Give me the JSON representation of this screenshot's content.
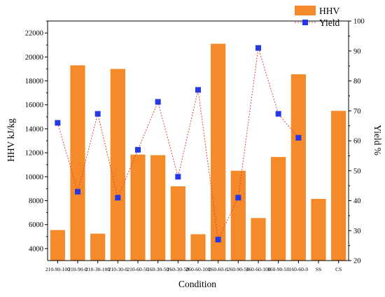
{
  "chart_data": {
    "type": "bar",
    "categories": [
      "210-90-100",
      "210-90-0",
      "210-30-100",
      "210-30-0",
      "210-60-50",
      "160-30-50",
      "260-30-50",
      "260-60-100",
      "260-60-0",
      "260-90-50",
      "160-60-100",
      "160-90-50",
      "160-60-0",
      "SS",
      "CS"
    ],
    "series": [
      {
        "name": "HHV",
        "type": "bar",
        "axis": "left",
        "color": "#F58A2A",
        "values": [
          5550,
          19300,
          5250,
          19000,
          11850,
          11800,
          9200,
          5200,
          21100,
          10500,
          6550,
          11650,
          18550,
          8150,
          15500
        ]
      },
      {
        "name": "Yield",
        "type": "line",
        "axis": "right",
        "color": "#2438E8",
        "line_color": "#E8443A",
        "values": [
          66,
          43,
          69,
          41,
          57,
          73,
          48,
          77,
          27,
          41,
          91,
          69,
          61,
          null,
          null
        ]
      }
    ],
    "xlabel": "Condition",
    "ylabel": "HHV kJ/kg",
    "y2label": "Yield %",
    "ylim": [
      3000,
      23000
    ],
    "y2lim": [
      20,
      100
    ],
    "yticks": [
      "4000",
      "6000",
      "8000",
      "10000",
      "12000",
      "14000",
      "16000",
      "18000",
      "20000",
      "22000"
    ],
    "y2ticks": [
      "20",
      "30",
      "40",
      "50",
      "60",
      "70",
      "80",
      "90",
      "100"
    ],
    "legend": {
      "position": "top-right",
      "items": [
        "HHV",
        "Yield"
      ]
    },
    "grid": false
  }
}
